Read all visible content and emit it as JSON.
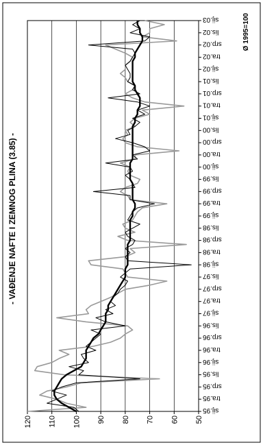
{
  "chart_data": {
    "type": "line",
    "title": "- VAĐENJE NAFTE I ZEMNOG PLINA (3.85) -",
    "annotation": "Ø 1995=100",
    "categories": [
      "sij.95",
      null,
      null,
      "tra.95",
      null,
      null,
      "srp.95",
      null,
      null,
      "lis.95",
      null,
      null,
      "sij.96",
      null,
      null,
      "tra.96",
      null,
      null,
      "srp.96",
      null,
      null,
      "lis.96",
      null,
      null,
      "sij.97",
      null,
      null,
      "tra.97",
      null,
      null,
      "srp.97",
      null,
      null,
      "lis.97",
      null,
      null,
      "sij.98",
      null,
      null,
      "tra.98",
      null,
      null,
      "srp.98",
      null,
      null,
      "lis.98",
      null,
      null,
      "sij.99",
      null,
      null,
      "tra.99",
      null,
      null,
      "srp.99",
      null,
      null,
      "lis.99",
      null,
      null,
      "sij.00",
      null,
      null,
      "tra.00",
      null,
      null,
      "srp.00",
      null,
      null,
      "lis.00",
      null,
      null,
      "sij.01",
      null,
      null,
      "tra.01",
      null,
      null,
      "srp.01",
      null,
      null,
      "lis.01",
      null,
      null,
      "sij.02",
      null,
      null,
      "tra.02",
      null,
      null,
      "srp.02",
      null,
      null,
      "lis.02",
      null,
      null,
      "sij.03"
    ],
    "series": [
      {
        "color": "#999999",
        "width": 1.6,
        "values": [
          120,
          96,
          104,
          108,
          115,
          112,
          104,
          98,
          66,
          105,
          117,
          116,
          110,
          107,
          103,
          107,
          93,
          86,
          82,
          80,
          77,
          79,
          96,
          108,
          95,
          96,
          94,
          90,
          86,
          83,
          80,
          70,
          63,
          79,
          80,
          81,
          94,
          95,
          80,
          76,
          78,
          55,
          79,
          83,
          76,
          80,
          81,
          77,
          76,
          75,
          73,
          63,
          78,
          79,
          82,
          80,
          75,
          74,
          78,
          79,
          78,
          82,
          76,
          76,
          58,
          75,
          80,
          81,
          79,
          80,
          76,
          78,
          76,
          70,
          73,
          56,
          72,
          77,
          80,
          77,
          76,
          79,
          80,
          82,
          80,
          80,
          78,
          77,
          80,
          84,
          88,
          59,
          73,
          70,
          70,
          64,
          72
        ]
      },
      {
        "color": "#000000",
        "width": 1,
        "values": [
          99,
          101,
          112,
          108,
          104,
          110,
          106,
          100,
          74,
          99,
          97,
          103,
          95,
          97,
          98,
          92,
          96,
          94,
          92,
          90,
          94,
          80,
          88,
          92,
          85,
          88,
          84,
          86,
          85,
          83,
          82,
          80,
          79,
          82,
          80,
          78,
          53,
          79,
          80,
          78,
          80,
          77,
          76,
          79,
          80,
          77,
          74,
          79,
          78,
          77,
          75,
          68,
          78,
          78,
          93,
          76,
          77,
          78,
          80,
          77,
          78,
          88,
          75,
          77,
          70,
          72,
          77,
          84,
          78,
          79,
          76,
          74,
          77,
          72,
          75,
          70,
          75,
          87,
          74,
          77,
          76,
          79,
          78,
          78,
          79,
          80,
          78,
          77,
          76,
          77,
          95,
          72,
          70,
          78,
          74,
          77,
          74
        ]
      },
      {
        "color": "#000000",
        "width": 2.4,
        "values": [
          100,
          103,
          106,
          108,
          109,
          109,
          108,
          107,
          106,
          104,
          101,
          98,
          97,
          96,
          96,
          96,
          95,
          94,
          93,
          91,
          90,
          89,
          88,
          88,
          88,
          87,
          87,
          86,
          85,
          84,
          83,
          82,
          81,
          80,
          80,
          80,
          79,
          79,
          79,
          79,
          79,
          79,
          78,
          78,
          78,
          78,
          78,
          78,
          77,
          77,
          76,
          76,
          77,
          77,
          77,
          77,
          77,
          78,
          78,
          78,
          78,
          78,
          77,
          77,
          77,
          77,
          77,
          77,
          77,
          77,
          77,
          76,
          76,
          75,
          75,
          74,
          74,
          74,
          75,
          76,
          76,
          77,
          77,
          77,
          77,
          77,
          77,
          76,
          76,
          75,
          74,
          73,
          73,
          74,
          74,
          75,
          75
        ]
      }
    ],
    "ylim": [
      50,
      120
    ],
    "yticks": [
      50,
      60,
      70,
      80,
      90,
      100,
      110,
      120
    ],
    "grid": true
  }
}
